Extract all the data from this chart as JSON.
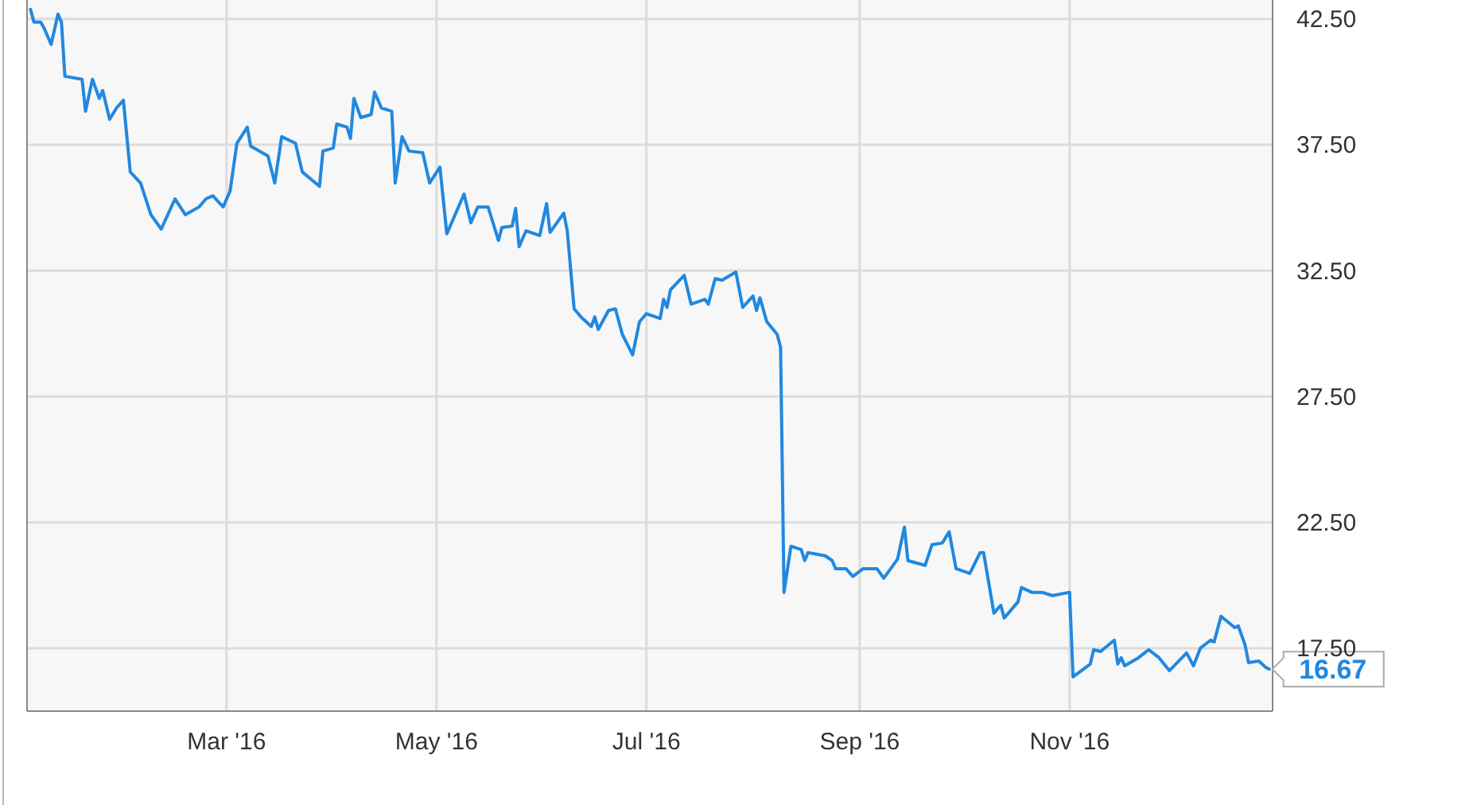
{
  "chart_data": {
    "type": "line",
    "grid": true,
    "xlim": [
      "2016-01-03",
      "2016-12-30"
    ],
    "ylim": [
      15,
      43.25
    ],
    "xticks": [
      {
        "value": "2016-03-01",
        "label": "Mar '16"
      },
      {
        "value": "2016-05-01",
        "label": "May '16"
      },
      {
        "value": "2016-07-01",
        "label": "Jul '16"
      },
      {
        "value": "2016-09-01",
        "label": "Sep '16"
      },
      {
        "value": "2016-11-01",
        "label": "Nov '16"
      }
    ],
    "yticks": [
      {
        "value": 17.5,
        "label": "17.50"
      },
      {
        "value": 22.5,
        "label": "22.50"
      },
      {
        "value": 27.5,
        "label": "27.50"
      },
      {
        "value": 32.5,
        "label": "32.50"
      },
      {
        "value": 37.5,
        "label": "37.50"
      },
      {
        "value": 42.5,
        "label": "42.50"
      }
    ],
    "x": [
      "2016-01-04",
      "2016-01-05",
      "2016-01-07",
      "2016-01-08",
      "2016-01-10",
      "2016-01-12",
      "2016-01-13",
      "2016-01-14",
      "2016-01-19",
      "2016-01-20",
      "2016-01-22",
      "2016-01-24",
      "2016-01-25",
      "2016-01-27",
      "2016-01-29",
      "2016-01-31",
      "2016-02-02",
      "2016-02-05",
      "2016-02-08",
      "2016-02-11",
      "2016-02-15",
      "2016-02-18",
      "2016-02-22",
      "2016-02-24",
      "2016-02-26",
      "2016-02-29",
      "2016-03-02",
      "2016-03-04",
      "2016-03-07",
      "2016-03-08",
      "2016-03-13",
      "2016-03-15",
      "2016-03-17",
      "2016-03-21",
      "2016-03-23",
      "2016-03-28",
      "2016-03-29",
      "2016-04-01",
      "2016-04-02",
      "2016-04-05",
      "2016-04-06",
      "2016-04-07",
      "2016-04-09",
      "2016-04-12",
      "2016-04-13",
      "2016-04-15",
      "2016-04-18",
      "2016-04-19",
      "2016-04-21",
      "2016-04-23",
      "2016-04-27",
      "2016-04-29",
      "2016-05-02",
      "2016-05-04",
      "2016-05-09",
      "2016-05-11",
      "2016-05-13",
      "2016-05-16",
      "2016-05-19",
      "2016-05-20",
      "2016-05-23",
      "2016-05-24",
      "2016-05-25",
      "2016-05-27",
      "2016-05-31",
      "2016-06-02",
      "2016-06-03",
      "2016-06-07",
      "2016-06-08",
      "2016-06-10",
      "2016-06-12",
      "2016-06-15",
      "2016-06-16",
      "2016-06-17",
      "2016-06-20",
      "2016-06-22",
      "2016-06-24",
      "2016-06-27",
      "2016-06-29",
      "2016-07-01",
      "2016-07-05",
      "2016-07-06",
      "2016-07-07",
      "2016-07-08",
      "2016-07-12",
      "2016-07-14",
      "2016-07-18",
      "2016-07-19",
      "2016-07-21",
      "2016-07-23",
      "2016-07-27",
      "2016-07-29",
      "2016-08-01",
      "2016-08-02",
      "2016-08-03",
      "2016-08-05",
      "2016-08-08",
      "2016-08-09",
      "2016-08-10",
      "2016-08-12",
      "2016-08-15",
      "2016-08-16",
      "2016-08-17",
      "2016-08-22",
      "2016-08-24",
      "2016-08-25",
      "2016-08-28",
      "2016-08-30",
      "2016-09-02",
      "2016-09-06",
      "2016-09-08",
      "2016-09-12",
      "2016-09-14",
      "2016-09-15",
      "2016-09-20",
      "2016-09-22",
      "2016-09-25",
      "2016-09-27",
      "2016-09-29",
      "2016-10-03",
      "2016-10-06",
      "2016-10-07",
      "2016-10-10",
      "2016-10-12",
      "2016-10-13",
      "2016-10-17",
      "2016-10-18",
      "2016-10-21",
      "2016-10-24",
      "2016-10-27",
      "2016-11-01",
      "2016-11-02",
      "2016-11-07",
      "2016-11-08",
      "2016-11-10",
      "2016-11-14",
      "2016-11-15",
      "2016-11-16",
      "2016-11-17",
      "2016-11-21",
      "2016-11-24",
      "2016-11-27",
      "2016-11-30",
      "2016-12-05",
      "2016-12-07",
      "2016-12-09",
      "2016-12-12",
      "2016-12-13",
      "2016-12-15",
      "2016-12-19",
      "2016-12-20",
      "2016-12-22",
      "2016-12-23",
      "2016-12-26",
      "2016-12-28",
      "2016-12-29"
    ],
    "series": [
      {
        "color": "#2188e0",
        "values": [
          42.88,
          42.37,
          42.37,
          42.12,
          41.49,
          42.69,
          42.37,
          40.22,
          40.1,
          38.83,
          40.1,
          39.34,
          39.65,
          38.51,
          38.96,
          39.27,
          36.42,
          35.98,
          34.72,
          34.15,
          35.35,
          34.72,
          35.03,
          35.35,
          35.47,
          35.03,
          35.66,
          37.56,
          38.2,
          37.44,
          37.06,
          35.98,
          37.82,
          37.56,
          36.42,
          35.85,
          37.25,
          37.37,
          38.32,
          38.2,
          37.75,
          39.34,
          38.58,
          38.7,
          39.59,
          38.96,
          38.83,
          35.98,
          37.82,
          37.25,
          37.18,
          35.98,
          36.61,
          33.96,
          35.54,
          34.4,
          35.03,
          35.03,
          33.7,
          34.21,
          34.27,
          34.97,
          33.45,
          34.08,
          33.89,
          35.16,
          34.02,
          34.78,
          34.08,
          30.98,
          30.66,
          30.28,
          30.66,
          30.16,
          30.92,
          30.98,
          29.97,
          29.15,
          30.47,
          30.79,
          30.6,
          31.36,
          31.04,
          31.74,
          32.31,
          31.17,
          31.36,
          31.17,
          32.18,
          32.12,
          32.44,
          31.04,
          31.49,
          30.92,
          31.42,
          30.47,
          29.97,
          29.46,
          19.72,
          21.55,
          21.42,
          20.98,
          21.3,
          21.17,
          20.98,
          20.66,
          20.66,
          20.35,
          20.66,
          20.66,
          20.28,
          21.04,
          22.31,
          20.98,
          20.79,
          21.61,
          21.68,
          22.12,
          20.66,
          20.47,
          21.3,
          21.3,
          18.89,
          19.21,
          18.7,
          19.34,
          19.91,
          19.72,
          19.72,
          19.59,
          19.72,
          16.36,
          16.87,
          17.44,
          17.37,
          17.82,
          16.87,
          17.12,
          16.8,
          17.12,
          17.44,
          17.12,
          16.61,
          17.31,
          16.8,
          17.5,
          17.82,
          17.75,
          18.77,
          18.32,
          18.39,
          17.63,
          16.93,
          16.99,
          16.74,
          16.67
        ],
        "value_labels": [
          null,
          null,
          null,
          null,
          null,
          null,
          null,
          null,
          null,
          null,
          null,
          null,
          null,
          null,
          null,
          null,
          null,
          null,
          null,
          null,
          null,
          null,
          null,
          null,
          null,
          null,
          null,
          null,
          null,
          null,
          null,
          null,
          null,
          null,
          null,
          null,
          null,
          null,
          null,
          null,
          null,
          null,
          null,
          null,
          null,
          null,
          null,
          null,
          null,
          null,
          null,
          null,
          null,
          null,
          null,
          null,
          null,
          null,
          null,
          null,
          null,
          null,
          null,
          null,
          null,
          null,
          null,
          null,
          null,
          null,
          null,
          null,
          null,
          null,
          null,
          null,
          null,
          null,
          null,
          null,
          null,
          null,
          null,
          null,
          null,
          null,
          null,
          null,
          null,
          null,
          null,
          null,
          null,
          null,
          null,
          null,
          null,
          null,
          null,
          null,
          null,
          null,
          null,
          null,
          null,
          null,
          null,
          null,
          null,
          null,
          null,
          null,
          null,
          null,
          null,
          null,
          null,
          null,
          null,
          null,
          null,
          null,
          null,
          null,
          null,
          null,
          null,
          null,
          null,
          null,
          null,
          null,
          null,
          null,
          null,
          null,
          null,
          null,
          null,
          null,
          null,
          null,
          null,
          null,
          null,
          null,
          null,
          null,
          null,
          null,
          null,
          null,
          null,
          null,
          null,
          "16.67"
        ]
      }
    ]
  }
}
